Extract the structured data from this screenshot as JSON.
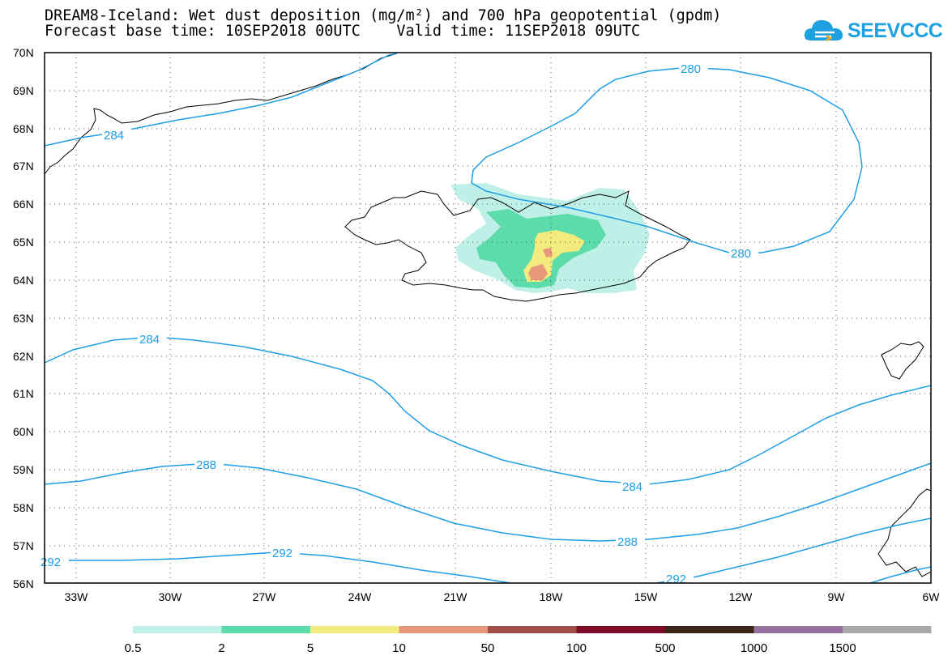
{
  "header": {
    "title_line1": "DREAM8-Iceland: Wet dust deposition (mg/m²) and 700 hPa geopotential (gpdm)",
    "title_line2": "Forecast base time: 10SEP2018 00UTC    Valid time: 11SEP2018 09UTC"
  },
  "logo": {
    "text": "SEEVCCC",
    "icon": "cloud-icon",
    "color": "#1fa0e0"
  },
  "map": {
    "lat_labels": [
      "70N",
      "69N",
      "68N",
      "67N",
      "66N",
      "65N",
      "64N",
      "63N",
      "62N",
      "61N",
      "60N",
      "59N",
      "58N",
      "57N",
      "56N"
    ],
    "lon_labels": [
      "33W",
      "30W",
      "27W",
      "24W",
      "21W",
      "18W",
      "15W",
      "12W",
      "9W",
      "6W"
    ],
    "contour_color": "#1e9ee6",
    "contours": [
      {
        "label": "280"
      },
      {
        "label": "280"
      },
      {
        "label": "284"
      },
      {
        "label": "284"
      },
      {
        "label": "284"
      },
      {
        "label": "288"
      },
      {
        "label": "288"
      },
      {
        "label": "292"
      },
      {
        "label": "292"
      },
      {
        "label": "292"
      }
    ]
  },
  "colorbar": {
    "colors": [
      "#bff0e8",
      "#5cdcaa",
      "#f2ec7e",
      "#e9977a",
      "#a24f49",
      "#7d0a26",
      "#3b2519",
      "#94719f",
      "#a8a8a8"
    ],
    "labels": [
      "0.5",
      "2",
      "5",
      "10",
      "50",
      "100",
      "500",
      "1000",
      "1500"
    ]
  }
}
